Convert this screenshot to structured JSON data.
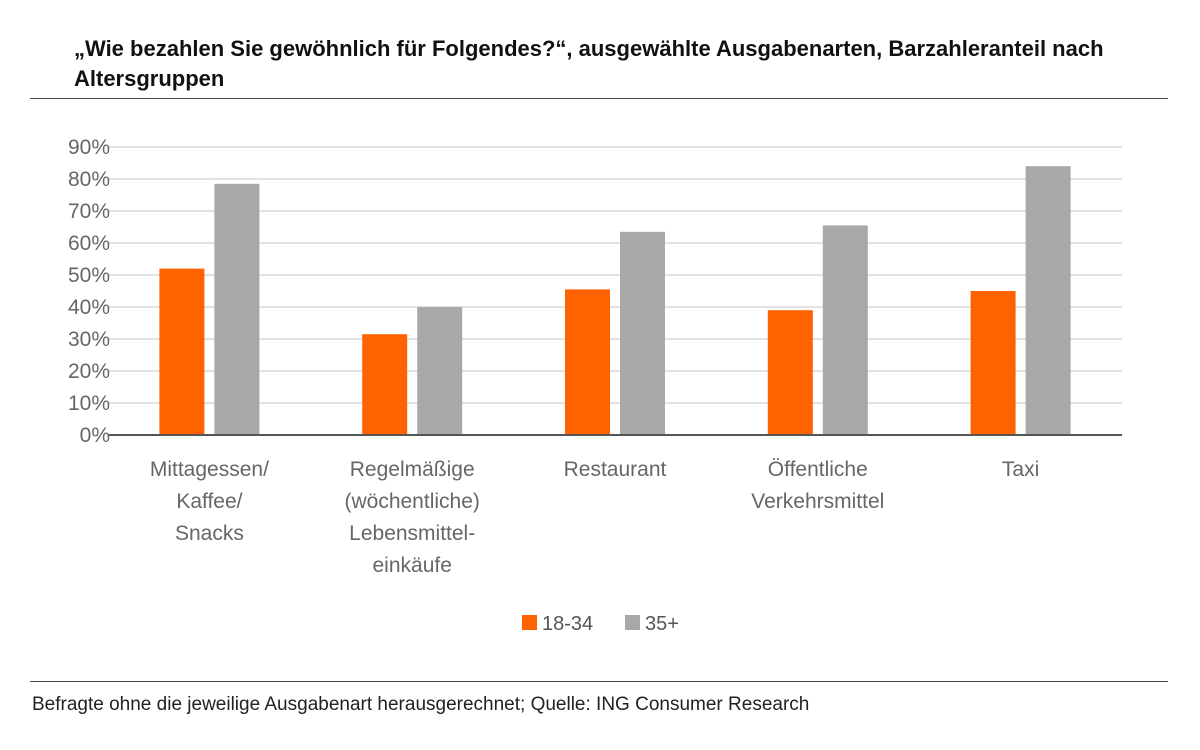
{
  "title": "„Wie bezahlen Sie gewöhnlich für Folgendes?“, ausgewählte Ausgabenarten, Barzahleranteil nach Altersgruppen",
  "footnote": "Befragte ohne die jeweilige Ausgabenart herausgerechnet; Quelle: ING Consumer Research",
  "colors": {
    "series_18_34": "#ff6200",
    "series_35_plus": "#a8a8a8",
    "grid": "#d9d9d9",
    "axis": "#555555"
  },
  "chart_data": {
    "type": "bar",
    "categories": [
      [
        "Mittagessen/",
        "Kaffee/",
        "Snacks"
      ],
      [
        "Regelmäßige",
        "(wöchentliche)",
        "Lebensmittel-",
        "einkäufe"
      ],
      [
        "Restaurant"
      ],
      [
        "Öffentliche",
        "Verkehrsmittel"
      ],
      [
        "Taxi"
      ]
    ],
    "series": [
      {
        "name": "18-34",
        "values": [
          52,
          31.5,
          45.5,
          39,
          45
        ]
      },
      {
        "name": "35+",
        "values": [
          78.5,
          40,
          63.5,
          65.5,
          84
        ]
      }
    ],
    "yticks": [
      "0%",
      "10%",
      "20%",
      "30%",
      "40%",
      "50%",
      "60%",
      "70%",
      "80%",
      "90%"
    ],
    "ylim": [
      0,
      90
    ],
    "grid": true,
    "legend_position": "bottom"
  }
}
